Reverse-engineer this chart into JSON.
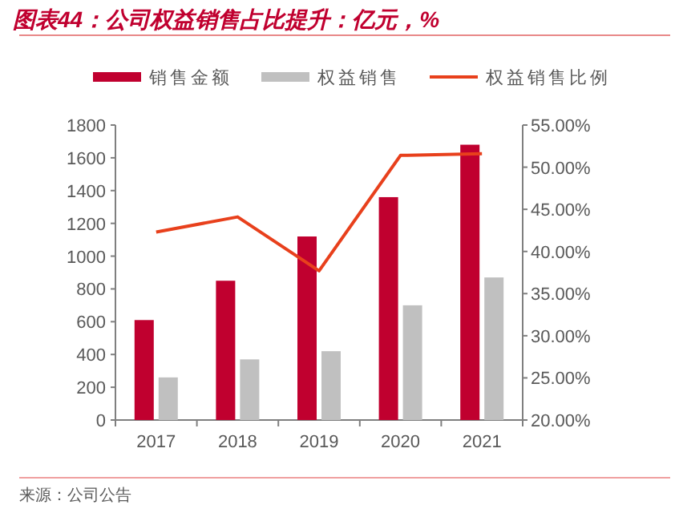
{
  "chart_data": {
    "type": "bar",
    "title": "图表44：公司权益销售占比提升：亿元，%",
    "annotations": [
      "来源：公司公告"
    ],
    "categories": [
      "2017",
      "2018",
      "2019",
      "2020",
      "2021"
    ],
    "series": [
      {
        "name": "销售金额",
        "color": "#c0002f",
        "values": [
          610,
          850,
          1120,
          1360,
          1680
        ]
      },
      {
        "name": "权益销售",
        "color": "#c0c0c0",
        "values": [
          260,
          370,
          420,
          700,
          870
        ]
      },
      {
        "name": "权益销售比例",
        "type": "line",
        "axis": "y2",
        "color": "#e8401c",
        "values": [
          42.3,
          44.1,
          37.7,
          51.4,
          51.6
        ]
      }
    ],
    "ylim": [
      0,
      1800
    ],
    "yticks": [
      0,
      200,
      400,
      600,
      800,
      1000,
      1200,
      1400,
      1600,
      1800
    ],
    "y2lim": [
      20,
      55
    ],
    "y2ticks": [
      {
        "value": 20,
        "label": "20.00%"
      },
      {
        "value": 25,
        "label": "25.00%"
      },
      {
        "value": 30,
        "label": "30.00%"
      },
      {
        "value": 35,
        "label": "35.00%"
      },
      {
        "value": 40,
        "label": "40.00%"
      },
      {
        "value": 45,
        "label": "45.00%"
      },
      {
        "value": 50,
        "label": "50.00%"
      },
      {
        "value": 55,
        "label": "55.00%"
      }
    ],
    "grid": false,
    "legend": "top"
  }
}
